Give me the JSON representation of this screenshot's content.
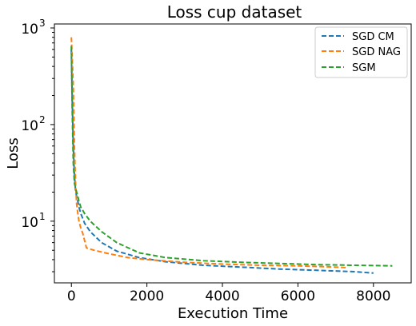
{
  "chart_data": {
    "type": "line",
    "title": "Loss cup dataset",
    "xlabel": "Execution Time",
    "ylabel": "Loss",
    "xlim": [
      -450,
      9000
    ],
    "ylim": [
      2.3,
      1100
    ],
    "yscale": "log",
    "x_ticks": [
      0,
      2000,
      4000,
      6000,
      8000
    ],
    "x_tick_labels": [
      "0",
      "2000",
      "4000",
      "6000",
      "8000"
    ],
    "y_ticks": [
      10,
      100,
      1000
    ],
    "y_tick_labels": [
      {
        "base": "10",
        "exp": "1"
      },
      {
        "base": "10",
        "exp": "2"
      },
      {
        "base": "10",
        "exp": "3"
      }
    ],
    "legend_position": "top-right",
    "line_style": "dashed",
    "series": [
      {
        "name": "SGD CM",
        "color": "#1f77b4",
        "x": [
          0,
          20,
          50,
          80,
          110,
          140,
          170,
          200,
          250,
          350,
          500,
          800,
          1200,
          1800,
          2500,
          3500,
          4500,
          5500,
          6500,
          7500,
          8000
        ],
        "y": [
          600,
          200,
          60,
          30,
          21,
          18,
          16,
          14,
          12,
          9.5,
          7.8,
          6.0,
          4.9,
          4.2,
          3.8,
          3.5,
          3.35,
          3.2,
          3.1,
          3.0,
          2.9
        ]
      },
      {
        "name": "SGD NAG",
        "color": "#ff7f0e",
        "x": [
          0,
          20,
          50,
          80,
          110,
          140,
          170,
          200,
          250,
          300,
          400,
          600,
          1000,
          1500,
          2000,
          3000,
          4000,
          5000,
          6000,
          6500,
          7000,
          7300
        ],
        "y": [
          800,
          500,
          250,
          60,
          25,
          15,
          12,
          10,
          8.5,
          7.5,
          5.3,
          5.0,
          4.6,
          4.2,
          4.0,
          3.75,
          3.6,
          3.5,
          3.45,
          3.4,
          3.35,
          3.3
        ]
      },
      {
        "name": "SGM",
        "color": "#2ca02c",
        "x": [
          0,
          20,
          50,
          80,
          110,
          140,
          170,
          200,
          250,
          350,
          500,
          800,
          1200,
          1800,
          2500,
          3500,
          4500,
          5500,
          6500,
          7500,
          8500
        ],
        "y": [
          650,
          150,
          40,
          25,
          22,
          20,
          18,
          16,
          14,
          12,
          10,
          7.8,
          6.0,
          4.7,
          4.2,
          3.9,
          3.75,
          3.65,
          3.55,
          3.5,
          3.45
        ]
      }
    ]
  }
}
